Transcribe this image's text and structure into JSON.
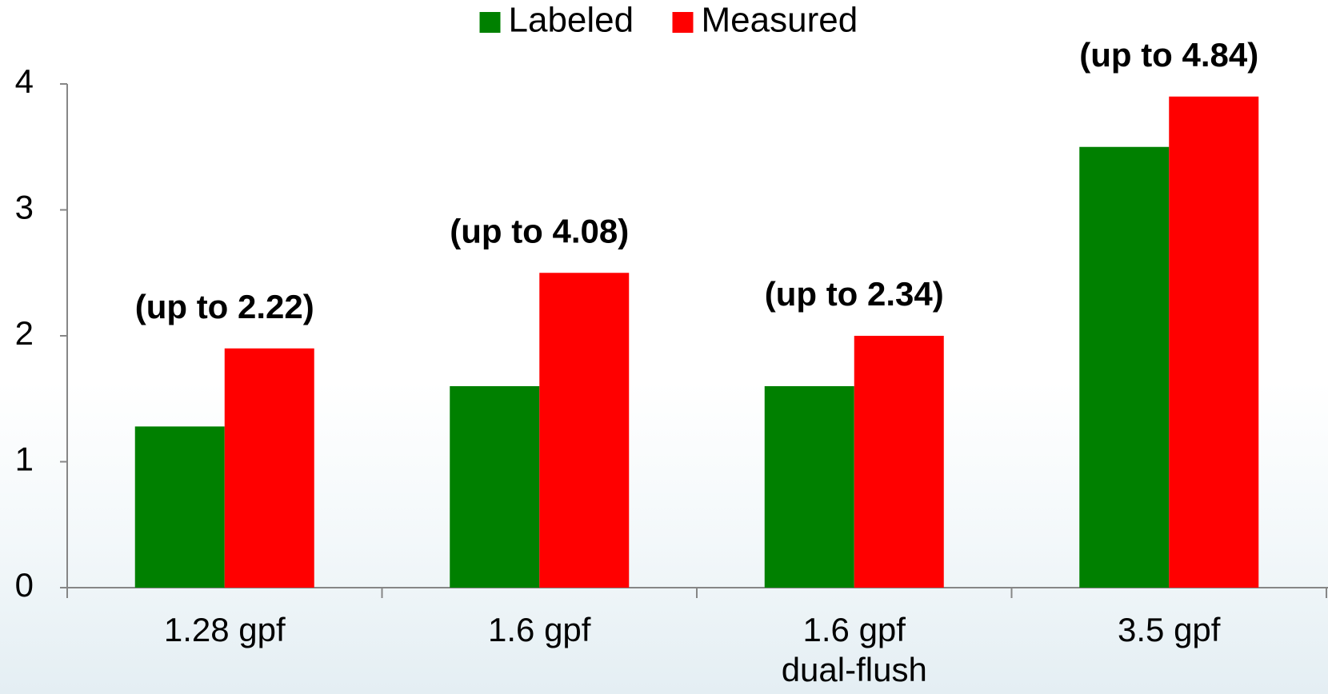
{
  "chart_data": {
    "type": "bar",
    "categories": [
      "1.28 gpf",
      "1.6 gpf",
      "1.6 gpf\ndual-flush",
      "3.5 gpf"
    ],
    "series": [
      {
        "name": "Labeled",
        "values": [
          1.28,
          1.6,
          1.6,
          3.5
        ],
        "color": "#008000"
      },
      {
        "name": "Measured",
        "values": [
          1.9,
          2.5,
          2.0,
          3.9
        ],
        "color": "#ff0000"
      }
    ],
    "annotations": [
      "(up to 2.22)",
      "(up to 4.08)",
      "(up to 2.34)",
      "(up to 4.84)"
    ],
    "yticks": [
      0,
      1,
      2,
      3,
      4
    ],
    "ylim": [
      0,
      4
    ],
    "grid": false,
    "legend_position": "top-center",
    "title": "",
    "xlabel": "",
    "ylabel": ""
  }
}
